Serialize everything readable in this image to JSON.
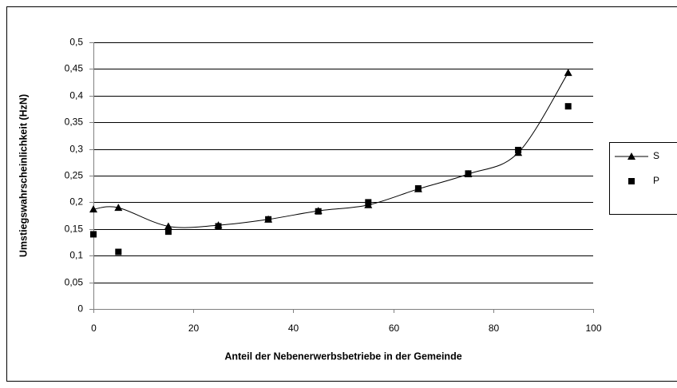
{
  "chart_data": {
    "type": "line",
    "xlabel": "Anteil der Nebenerwerbsbetriebe in der Gemeinde",
    "ylabel": "Umstiegswahrscheinlichkeit (HzN)",
    "x": [
      0,
      5,
      15,
      25,
      35,
      45,
      55,
      65,
      75,
      85,
      95
    ],
    "series": [
      {
        "name": "S",
        "color": "#000000",
        "marker": "triangle",
        "line": true,
        "values": [
          0.187,
          0.19,
          0.155,
          0.157,
          0.168,
          0.184,
          0.195,
          0.225,
          0.253,
          0.293,
          0.443
        ]
      },
      {
        "name": "P",
        "color": "#000000",
        "marker": "square",
        "line": false,
        "values": [
          0.14,
          0.107,
          0.145,
          0.155,
          0.168,
          0.183,
          0.2,
          0.226,
          0.254,
          0.298,
          0.38
        ]
      }
    ],
    "xlim": [
      0,
      100
    ],
    "xticks": [
      0,
      20,
      40,
      60,
      80,
      100
    ],
    "ylim": [
      0,
      0.5
    ],
    "yticks": [
      0,
      {
        "value": 0.05,
        "label": "0,05"
      },
      {
        "value": 0.1,
        "label": "0,1"
      },
      {
        "value": 0.15,
        "label": "0,15"
      },
      {
        "value": 0.2,
        "label": "0,2"
      },
      {
        "value": 0.25,
        "label": "0,25"
      },
      {
        "value": 0.3,
        "label": "0,3"
      },
      {
        "value": 0.35,
        "label": "0,35"
      },
      {
        "value": 0.4,
        "label": "0,4"
      },
      {
        "value": 0.45,
        "label": "0,45"
      },
      {
        "value": 0.5,
        "label": "0,5"
      }
    ],
    "grid": true,
    "legend": "right"
  }
}
